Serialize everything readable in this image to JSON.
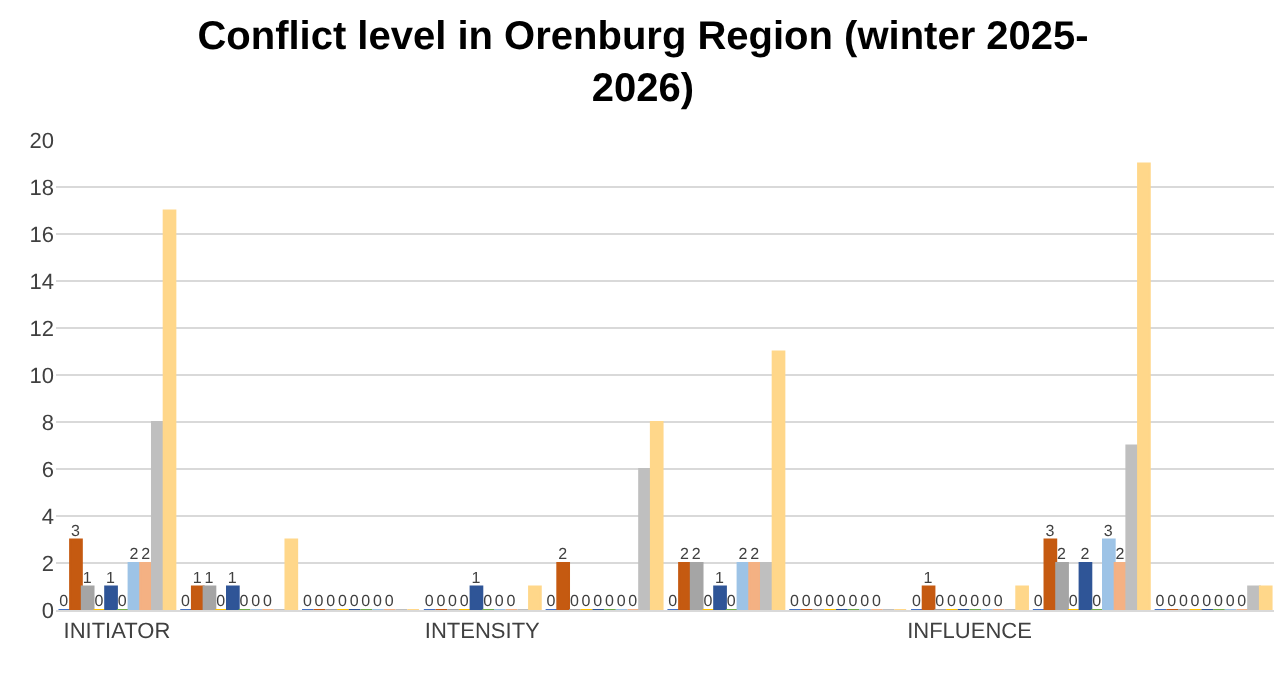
{
  "chart_data": {
    "type": "bar",
    "title": "Conflict level in Orenburg Region (winter 2025-\n2026)",
    "categories": [
      "INITIATOR",
      null,
      null,
      "INTENSITY",
      null,
      null,
      null,
      "INFLUENCE",
      null,
      null
    ],
    "series": [
      {
        "color": "#4472c4",
        "values": [
          0,
          0,
          0,
          0,
          0,
          0,
          0,
          0,
          0,
          0
        ],
        "value_labels": [
          "0",
          "0",
          "0",
          "0",
          "0",
          "0",
          "0",
          "0",
          "0",
          "0"
        ]
      },
      {
        "color": "#c55a11",
        "values": [
          3,
          1,
          0,
          0,
          2,
          2,
          0,
          1,
          3,
          0
        ],
        "value_labels": [
          "3",
          "1",
          "0",
          "0",
          "2",
          "2",
          "0",
          "1",
          "3",
          "0"
        ]
      },
      {
        "color": "#a5a5a5",
        "values": [
          1,
          1,
          0,
          0,
          0,
          2,
          0,
          0,
          2,
          0
        ],
        "value_labels": [
          "1",
          "1",
          "0",
          "0",
          "0",
          "2",
          "0",
          "0",
          "2",
          "0"
        ]
      },
      {
        "color": "#ffc000",
        "values": [
          0,
          0,
          0,
          0,
          0,
          0,
          0,
          0,
          0,
          0
        ],
        "value_labels": [
          "0",
          "0",
          "0",
          "0",
          "0",
          "0",
          "0",
          "0",
          "0",
          "0"
        ]
      },
      {
        "color": "#2f5597",
        "values": [
          1,
          1,
          0,
          1,
          0,
          1,
          0,
          0,
          2,
          0
        ],
        "value_labels": [
          "1",
          "1",
          "0",
          "1",
          "0",
          "1",
          "0",
          "0",
          "2",
          "0"
        ]
      },
      {
        "color": "#70ad47",
        "values": [
          0,
          0,
          0,
          0,
          0,
          0,
          0,
          0,
          0,
          0
        ],
        "value_labels": [
          "0",
          "0",
          "0",
          "0",
          "0",
          "0",
          "0",
          "0",
          "0",
          "0"
        ]
      },
      {
        "color": "#9dc3e6",
        "values": [
          2,
          0,
          0,
          0,
          0,
          2,
          0,
          0,
          3,
          0
        ],
        "value_labels": [
          "2",
          "0",
          "0",
          "0",
          "0",
          "2",
          "0",
          "0",
          "3",
          "0"
        ]
      },
      {
        "color": "#f4b183",
        "values": [
          2,
          0,
          0,
          0,
          0,
          2,
          0,
          0,
          2,
          0
        ],
        "value_labels": [
          "2",
          "0",
          "0",
          "0",
          "0",
          "2",
          "0",
          "0",
          "2",
          "0"
        ]
      },
      {
        "color": "#bfbfbf",
        "values": [
          8,
          0,
          0,
          0,
          6,
          2,
          0,
          0,
          7,
          1
        ]
      },
      {
        "color": "#ffd78a",
        "values": [
          17,
          3,
          0,
          1,
          8,
          11,
          0,
          1,
          19,
          1
        ]
      }
    ],
    "ylim": [
      0,
      20
    ],
    "yticks": [
      0,
      2,
      4,
      6,
      8,
      10,
      12,
      14,
      16,
      18,
      20
    ],
    "grid": "y"
  }
}
